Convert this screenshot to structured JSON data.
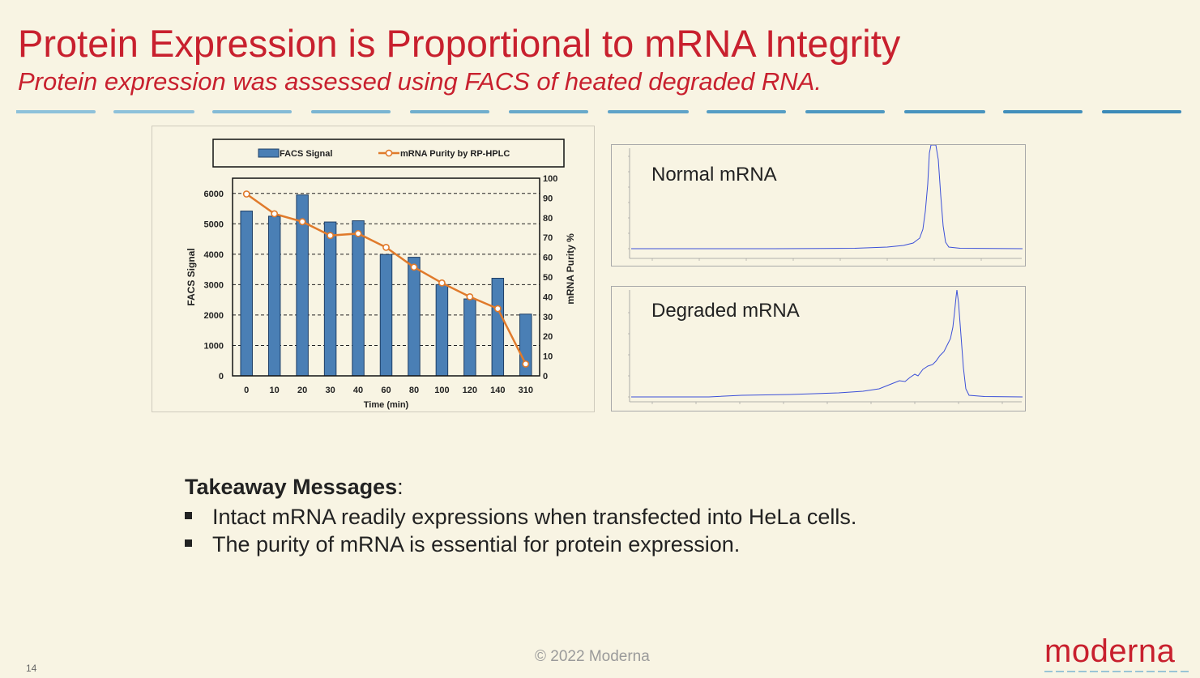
{
  "slide": {
    "title": "Protein Expression is Proportional to mRNA Integrity",
    "subtitle": "Protein expression was assessed using FACS of heated degraded RNA.",
    "page_number": "14",
    "copyright": "© 2022 Moderna",
    "logo_text": "moderna",
    "colors": {
      "accent": "#c8202e",
      "background": "#f8f4e3",
      "divider": "#5fa3c8"
    }
  },
  "chart_data": {
    "type": "bar",
    "categories": [
      "0",
      "10",
      "20",
      "30",
      "40",
      "60",
      "80",
      "100",
      "120",
      "140",
      "310"
    ],
    "series": [
      {
        "name": "FACS Signal",
        "type": "bar",
        "axis": "left",
        "color": "#4a7fb5",
        "values": [
          5420,
          5250,
          5950,
          5060,
          5100,
          3990,
          3900,
          3000,
          2530,
          3210,
          2030
        ]
      },
      {
        "name": "mRNA Purity by RP-HPLC",
        "type": "line",
        "axis": "right",
        "color": "#e07a2b",
        "values": [
          92,
          82,
          78,
          71,
          72,
          65,
          55,
          47,
          40,
          34,
          6
        ]
      }
    ],
    "xlabel": "Time (min)",
    "ylabel": "FACS Signal",
    "y2label": "mRNA Purity %",
    "ylim": [
      0,
      6500
    ],
    "yticks": [
      "0",
      "1000",
      "2000",
      "3000",
      "4000",
      "5000",
      "6000"
    ],
    "y2lim": [
      0,
      100
    ],
    "y2ticks": [
      "0",
      "10",
      "20",
      "30",
      "40",
      "50",
      "60",
      "70",
      "80",
      "90",
      "100"
    ],
    "grid": true,
    "legend_position": "top"
  },
  "hplc": {
    "normal_label": "Normal mRNA",
    "degraded_label": "Degraded mRNA"
  },
  "takeaway": {
    "heading": "Takeaway Messages",
    "colon": ":",
    "items": [
      "Intact mRNA readily expressions when transfected into HeLa cells.",
      "The purity of mRNA is essential for protein expression."
    ]
  }
}
